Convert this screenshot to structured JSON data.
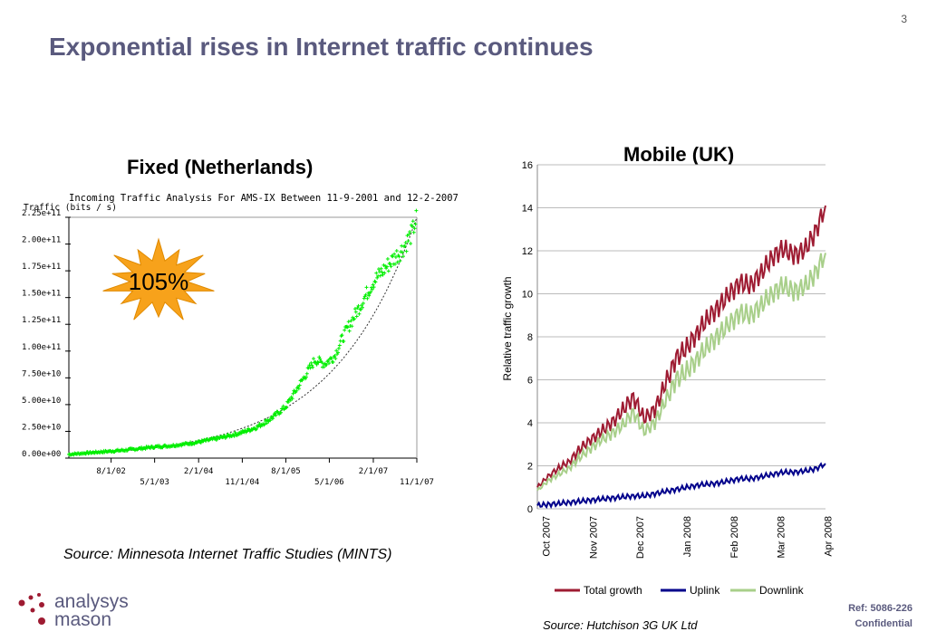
{
  "slide": {
    "page_number": "3",
    "title": "Exponential rises in Internet traffic continues",
    "fixed_heading": "Fixed (Netherlands)",
    "mobile_heading": "Mobile (UK)",
    "left_source": "Source: Minnesota Internet Traffic Studies (MINTS)",
    "right_source": "Source: Hutchison 3G UK Ltd",
    "ref": "Ref: 5086-226",
    "confidential": "Confidential",
    "logo_line1": "analysys",
    "logo_line2": "mason",
    "starburst_label": "105%"
  },
  "colors": {
    "title": "#5a5a7e",
    "fixed_points": "#00ee00",
    "starburst": "#f7a21b",
    "total_growth": "#9e1b32",
    "uplink": "#00008b",
    "downlink": "#a8cf8a",
    "logo_dots": "#9e1b32"
  },
  "chart_data": [
    {
      "type": "scatter",
      "title": "Incoming Traffic Analysis For AMS-IX Between 11-9-2001 and 12-2-2007",
      "ylabel": "Traffic (bits / s)",
      "xlabel": "",
      "yticks": [
        "0.00e+00",
        "2.50e+10",
        "5.00e+10",
        "7.50e+10",
        "1.00e+11",
        "1.25e+11",
        "1.50e+11",
        "1.75e+11",
        "2.00e+11",
        "2.25e+11"
      ],
      "xticks_top": [
        "8/1/02",
        "2/1/04",
        "8/1/05",
        "2/1/07"
      ],
      "xticks_bottom": [
        "5/1/03",
        "11/1/04",
        "5/1/06",
        "11/1/07"
      ],
      "x_range": [
        "11/9/01",
        "11/1/07"
      ],
      "ylim": [
        0,
        225000000000
      ],
      "trend": "exponential fit (dotted)",
      "points": [
        [
          "2001-11-09",
          3500000000
        ],
        [
          "2002-02-01",
          4500000000
        ],
        [
          "2002-05-01",
          5500000000
        ],
        [
          "2002-08-01",
          6500000000
        ],
        [
          "2002-11-01",
          7500000000
        ],
        [
          "2003-02-01",
          9000000000
        ],
        [
          "2003-05-01",
          10500000000
        ],
        [
          "2003-08-01",
          11500000000
        ],
        [
          "2003-11-01",
          13000000000
        ],
        [
          "2004-02-01",
          15000000000
        ],
        [
          "2004-05-01",
          17500000000
        ],
        [
          "2004-08-01",
          20500000000
        ],
        [
          "2004-11-01",
          24000000000
        ],
        [
          "2005-02-01",
          29000000000
        ],
        [
          "2005-05-01",
          37000000000
        ],
        [
          "2005-08-01",
          48000000000
        ],
        [
          "2005-11-01",
          70000000000
        ],
        [
          "2006-02-01",
          92000000000
        ],
        [
          "2006-04-01",
          88000000000
        ],
        [
          "2006-06-01",
          95000000000
        ],
        [
          "2006-08-01",
          115000000000
        ],
        [
          "2006-11-01",
          140000000000
        ],
        [
          "2007-02-01",
          165000000000
        ],
        [
          "2007-05-01",
          180000000000
        ],
        [
          "2007-08-01",
          195000000000
        ],
        [
          "2007-10-01",
          210000000000
        ],
        [
          "2007-11-01",
          225000000000
        ]
      ]
    },
    {
      "type": "line",
      "title": "",
      "xlabel": "",
      "ylabel": "Relative traffic growth",
      "ylim": [
        0,
        16
      ],
      "yticks": [
        0,
        2,
        4,
        6,
        8,
        10,
        12,
        14,
        16
      ],
      "categories": [
        "Oct 2007",
        "Nov 2007",
        "Dec 2007",
        "Jan 2008",
        "Feb 2008",
        "Mar 2008",
        "Apr 2008"
      ],
      "x_range_weeks": [
        0,
        27
      ],
      "grid": true,
      "legend": "bottom",
      "series": [
        {
          "name": "Total growth",
          "x": [
            0,
            1,
            2,
            3,
            4,
            5,
            6,
            7,
            8,
            9,
            10,
            11,
            12,
            13,
            14,
            15,
            16,
            17,
            18,
            19,
            20,
            21,
            22,
            23,
            24,
            25,
            26,
            27
          ],
          "values": [
            1.0,
            1.5,
            1.9,
            2.2,
            2.8,
            3.2,
            3.6,
            4.0,
            4.6,
            5.2,
            4.2,
            4.6,
            5.8,
            7.0,
            7.5,
            8.2,
            8.9,
            9.4,
            10.0,
            10.5,
            10.4,
            11.0,
            11.7,
            12.1,
            11.8,
            12.0,
            12.8,
            14.1
          ]
        },
        {
          "name": "Uplink",
          "x": [
            0,
            1,
            2,
            3,
            4,
            5,
            6,
            7,
            8,
            9,
            10,
            11,
            12,
            13,
            14,
            15,
            16,
            17,
            18,
            19,
            20,
            21,
            22,
            23,
            24,
            25,
            26,
            27
          ],
          "values": [
            0.15,
            0.2,
            0.25,
            0.3,
            0.35,
            0.4,
            0.45,
            0.5,
            0.55,
            0.6,
            0.6,
            0.7,
            0.8,
            0.9,
            1.0,
            1.1,
            1.15,
            1.2,
            1.3,
            1.4,
            1.4,
            1.5,
            1.6,
            1.7,
            1.7,
            1.75,
            1.85,
            2.1
          ]
        },
        {
          "name": "Downlink",
          "x": [
            0,
            1,
            2,
            3,
            4,
            5,
            6,
            7,
            8,
            9,
            10,
            11,
            12,
            13,
            14,
            15,
            16,
            17,
            18,
            19,
            20,
            21,
            22,
            23,
            24,
            25,
            26,
            27
          ],
          "values": [
            0.85,
            1.3,
            1.6,
            1.9,
            2.4,
            2.8,
            3.2,
            3.5,
            3.9,
            4.5,
            3.6,
            4.0,
            5.0,
            6.0,
            6.4,
            7.0,
            7.6,
            8.1,
            8.6,
            9.1,
            9.0,
            9.5,
            10.0,
            10.4,
            10.1,
            10.3,
            10.9,
            11.9
          ]
        }
      ]
    }
  ]
}
